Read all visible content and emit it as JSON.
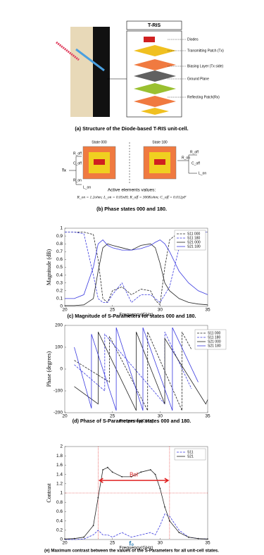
{
  "figure_a": {
    "header": "T-RIS",
    "layers": [
      "Diodes",
      "Transmitting Patch (Tx)",
      "Biasing Layer (Tx side)",
      "Ground Plane",
      "Reflecting Patch(Rx)"
    ],
    "caption": "(a) Structure of the Diode-based T-RIS unit-cell."
  },
  "figure_b": {
    "states": [
      "State 000",
      "State 180"
    ],
    "port": "Tx",
    "components": [
      "R_off",
      "C_off",
      "R_on",
      "L_on"
    ],
    "note_title": "Active elements values:",
    "note": "R_on = 1.2ohm; L_on = 0.05nH; R_off = 300Kohm; C_off = 0.012pF",
    "caption": "(b) Phase states 000 and 180."
  },
  "chart_data": [
    {
      "type": "line",
      "x_label": "Frequency(GHz)",
      "y_label": "Magnitude (dB)",
      "caption": "(c) Magnitude of S-Parameters for states 000 and 180.",
      "xlim": [
        20,
        35
      ],
      "xticks": [
        20,
        25,
        30,
        35
      ],
      "ylim": [
        0,
        1
      ],
      "yticks": [
        0,
        0.1,
        0.2,
        0.3,
        0.4,
        0.5,
        0.6,
        0.7,
        0.8,
        0.9,
        1
      ],
      "legend": "upper right",
      "x": [
        20,
        21,
        22,
        23,
        23.5,
        24,
        24.5,
        25,
        26,
        27,
        28,
        29,
        29.5,
        30,
        30.5,
        31,
        32,
        33,
        34,
        35
      ],
      "series": [
        {
          "name": "S11 000",
          "color": "#222222",
          "dash": true,
          "values": [
            0.95,
            0.95,
            0.95,
            0.92,
            0.6,
            0.1,
            0.05,
            0.2,
            0.25,
            0.15,
            0.22,
            0.2,
            0.08,
            0.02,
            0.5,
            0.85,
            0.95,
            0.95,
            0.95,
            0.95
          ]
        },
        {
          "name": "S11 180",
          "color": "#3a3adf",
          "dash": true,
          "values": [
            0.95,
            0.95,
            0.93,
            0.4,
            0.1,
            0.05,
            0.05,
            0.15,
            0.3,
            0.05,
            0.15,
            0.15,
            0.1,
            0.05,
            0.15,
            0.25,
            0.75,
            0.95,
            0.95,
            0.95
          ]
        },
        {
          "name": "S21 000",
          "color": "#222222",
          "values": [
            0.01,
            0.01,
            0.02,
            0.1,
            0.45,
            0.75,
            0.8,
            0.78,
            0.75,
            0.72,
            0.78,
            0.8,
            0.75,
            0.55,
            0.3,
            0.2,
            0.1,
            0.05,
            0.03,
            0.02
          ]
        },
        {
          "name": "S21 180",
          "color": "#3a3adf",
          "values": [
            0.1,
            0.1,
            0.15,
            0.5,
            0.8,
            0.85,
            0.78,
            0.75,
            0.72,
            0.72,
            0.74,
            0.78,
            0.82,
            0.85,
            0.8,
            0.7,
            0.45,
            0.3,
            0.2,
            0.15
          ]
        }
      ]
    },
    {
      "type": "line",
      "x_label": "Frequency(GHz)",
      "y_label": "Phase (degrees)",
      "caption": "(d) Phase of S-Parameters for states 000 and 180.",
      "xlim": [
        20,
        35
      ],
      "xticks": [
        20,
        25,
        30,
        35
      ],
      "ylim": [
        -200,
        200
      ],
      "yticks": [
        -200,
        -100,
        0,
        100,
        200
      ],
      "legend": "right",
      "series": [
        {
          "name": "S11 000",
          "color": "#222222",
          "dash": true,
          "x": [
            21,
            24.7,
            24.7,
            28.7,
            28.7,
            32.3,
            32.3,
            33.3
          ],
          "values": [
            40,
            -60,
            150,
            -190,
            170,
            -190,
            170,
            90
          ]
        },
        {
          "name": "S11 180",
          "color": "#3a3adf",
          "dash": true,
          "x": [
            21,
            24.2,
            24.2,
            30.5,
            30.5,
            33.3
          ],
          "values": [
            20,
            -100,
            160,
            -160,
            170,
            -90
          ]
        },
        {
          "name": "S21 000",
          "color": "#222222",
          "x": [
            21,
            23.5,
            23.5,
            27.5,
            27.5,
            30.5,
            30.5,
            34.8,
            35
          ],
          "values": [
            -80,
            -160,
            170,
            -190,
            170,
            -160,
            140,
            -160,
            -140
          ]
        },
        {
          "name": "S21 180",
          "color": "#3a3adf",
          "x": [
            21,
            22.8,
            22.8,
            25.4,
            25.4,
            28.2,
            28.2,
            31.3,
            31.3,
            34
          ],
          "values": [
            100,
            -180,
            160,
            -190,
            190,
            -190,
            190,
            -190,
            190,
            -60
          ]
        }
      ]
    },
    {
      "type": "line",
      "x_label": "Frequency(GHz)",
      "y_label": "Contrast",
      "caption": "(e) Maximum contrast between the values of the S-Parameters for all unit-cell states.",
      "xlim": [
        20,
        35
      ],
      "xticks": [
        20,
        25,
        30,
        35
      ],
      "ylim": [
        0,
        2
      ],
      "yticks": [
        0,
        0.2,
        0.4,
        0.6,
        0.8,
        1,
        1.2,
        1.4,
        1.6,
        1.8,
        2
      ],
      "legend": "upper right",
      "ref_y": 1,
      "ref_x": [
        23.5,
        31
      ],
      "ref_color": "#e02020",
      "annotation": {
        "text": "BoI",
        "y": 1.27
      },
      "marker_label": {
        "text": "f₀",
        "x": 27
      },
      "x": [
        20,
        21,
        22,
        23,
        23.5,
        24,
        24.5,
        25,
        26,
        27,
        28,
        29,
        29.5,
        30,
        30.5,
        31,
        32,
        33,
        34,
        35
      ],
      "series": [
        {
          "name": "S11",
          "color": "#3a3adf",
          "dash": true,
          "values": [
            0,
            0,
            0.01,
            0.1,
            0.2,
            0.1,
            0.1,
            0.05,
            0.15,
            0.05,
            0.1,
            0.15,
            0.1,
            0.3,
            0.55,
            0.5,
            0.2,
            0.05,
            0.02,
            0.01
          ]
        },
        {
          "name": "S21",
          "color": "#222222",
          "marker": true,
          "values": [
            0.01,
            0.02,
            0.05,
            0.3,
            0.9,
            1.5,
            1.55,
            1.45,
            1.35,
            1.35,
            1.45,
            1.5,
            1.4,
            1.1,
            0.7,
            0.4,
            0.15,
            0.05,
            0.02,
            0.01
          ]
        }
      ]
    }
  ]
}
